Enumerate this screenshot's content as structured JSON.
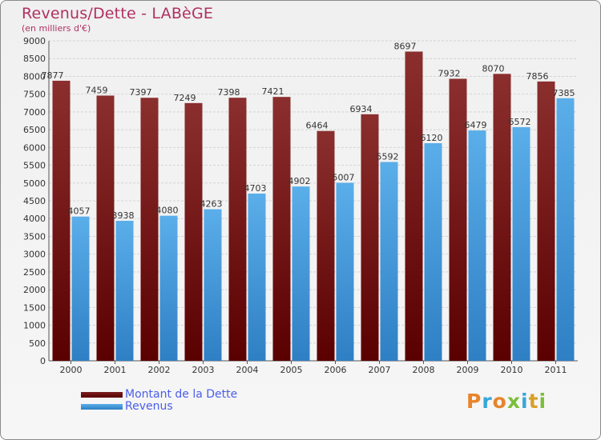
{
  "chart_data": {
    "type": "bar",
    "title": "Revenus/Dette - LABèGE",
    "subtitle": "(en milliers d'€)",
    "categories": [
      "2000",
      "2001",
      "2002",
      "2003",
      "2004",
      "2005",
      "2006",
      "2007",
      "2008",
      "2009",
      "2010",
      "2011"
    ],
    "series": [
      {
        "name": "Montant de la Dette",
        "color": "#7a1f1f",
        "values": [
          7877,
          7459,
          7397,
          7249,
          7398,
          7421,
          6464,
          6934,
          8697,
          7932,
          8070,
          7856
        ]
      },
      {
        "name": "Revenus",
        "color": "#4aa3e6",
        "values": [
          4057,
          3938,
          4080,
          4263,
          4703,
          4902,
          5007,
          5592,
          6120,
          6479,
          6572,
          7385
        ]
      }
    ],
    "ylim": [
      0,
      9000
    ],
    "ytick_step": 500,
    "grid": true,
    "legend": "bottom-left"
  },
  "branding": {
    "logo_text": "Proxiti",
    "logo_colors": [
      "#e8842a",
      "#39a6d8",
      "#e8842a",
      "#7bbf3a",
      "#39a6d8",
      "#d8a02a",
      "#7bbf3a"
    ]
  }
}
